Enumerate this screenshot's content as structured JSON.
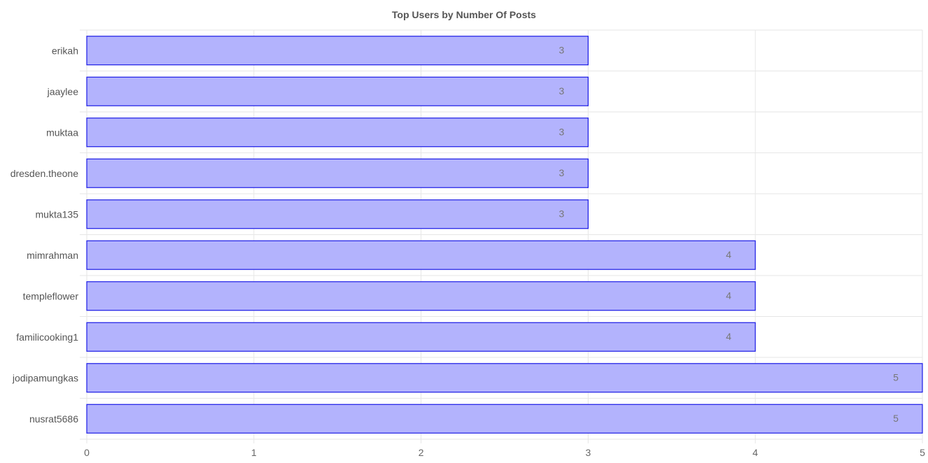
{
  "chart_data": {
    "type": "bar",
    "orientation": "horizontal",
    "title": "Top Users by Number Of Posts",
    "categories": [
      "erikah",
      "jaaylee",
      "muktaa",
      "dresden.theone",
      "mukta135",
      "mimrahman",
      "templeflower",
      "familicooking1",
      "jodipamungkas",
      "nusrat5686"
    ],
    "values": [
      3,
      3,
      3,
      3,
      3,
      4,
      4,
      4,
      5,
      5
    ],
    "xlim": [
      0,
      5
    ],
    "xticks": [
      "0",
      "1",
      "2",
      "3",
      "4",
      "5"
    ],
    "grid": true,
    "data_labels": true,
    "colors": {
      "bar_fill": "#b3b3fd",
      "bar_stroke": "#1a1ae6",
      "grid": "#e6e6e6"
    }
  }
}
